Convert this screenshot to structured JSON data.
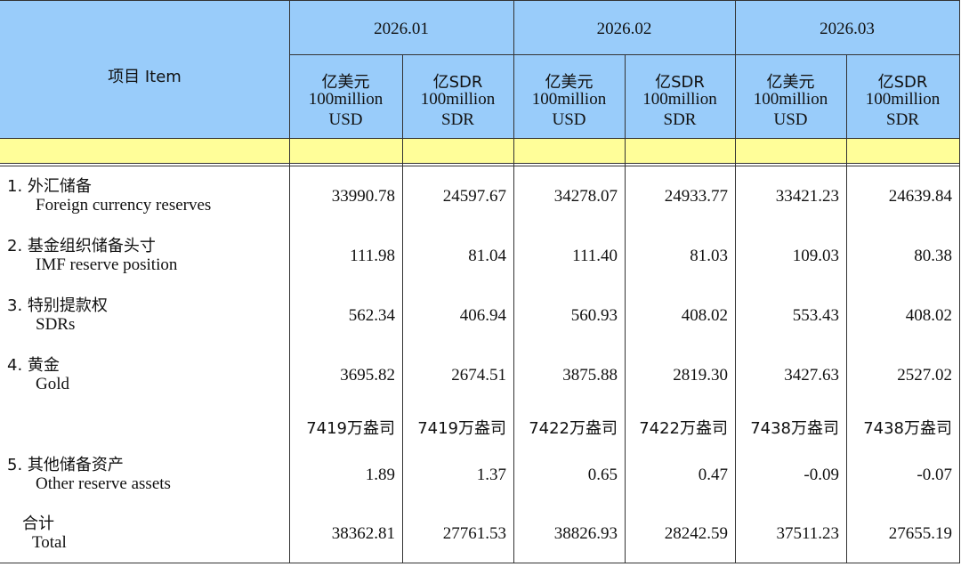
{
  "header": {
    "item": "项目  Item",
    "periods": [
      "2026.01",
      "2026.02",
      "2026.03"
    ],
    "units": [
      {
        "cn": "亿美元",
        "en": "100million",
        "code": "USD"
      },
      {
        "cn": "亿SDR",
        "en": "100million",
        "code": "SDR"
      },
      {
        "cn": "亿美元",
        "en": "100million",
        "code": "USD"
      },
      {
        "cn": "亿SDR",
        "en": "100million",
        "code": "SDR"
      },
      {
        "cn": "亿美元",
        "en": "100million",
        "code": "USD"
      },
      {
        "cn": "亿SDR",
        "en": "100million",
        "code": "SDR"
      }
    ]
  },
  "table": {
    "rows": [
      {
        "cn": "1. 外汇储备",
        "en": "Foreign currency reserves",
        "values": [
          "33990.78",
          "24597.67",
          "34278.07",
          "24933.77",
          "33421.23",
          "24639.84"
        ]
      },
      {
        "cn": "2. 基金组织储备头寸",
        "en": "IMF reserve position",
        "values": [
          "111.98",
          "81.04",
          "111.40",
          "81.03",
          "109.03",
          "80.38"
        ]
      },
      {
        "cn": "3. 特别提款权",
        "en": "SDRs",
        "values": [
          "562.34",
          "406.94",
          "560.93",
          "408.02",
          "553.43",
          "408.02"
        ]
      },
      {
        "cn": "4. 黄金",
        "en": "Gold",
        "values": [
          "3695.82",
          "2674.51",
          "3875.88",
          "2819.30",
          "3427.63",
          "2527.02"
        ]
      },
      {
        "values": [
          "7419万盎司",
          "7419万盎司",
          "7422万盎司",
          "7422万盎司",
          "7438万盎司",
          "7438万盎司"
        ]
      },
      {
        "cn": "5. 其他储备资产",
        "en": "Other reserve assets",
        "values": [
          "1.89",
          "1.37",
          "0.65",
          "0.47",
          "-0.09",
          "-0.07"
        ]
      },
      {
        "cn": "合计",
        "en": "Total",
        "values": [
          "38362.81",
          "27761.53",
          "38826.93",
          "28242.59",
          "37511.23",
          "27655.19"
        ]
      }
    ]
  }
}
